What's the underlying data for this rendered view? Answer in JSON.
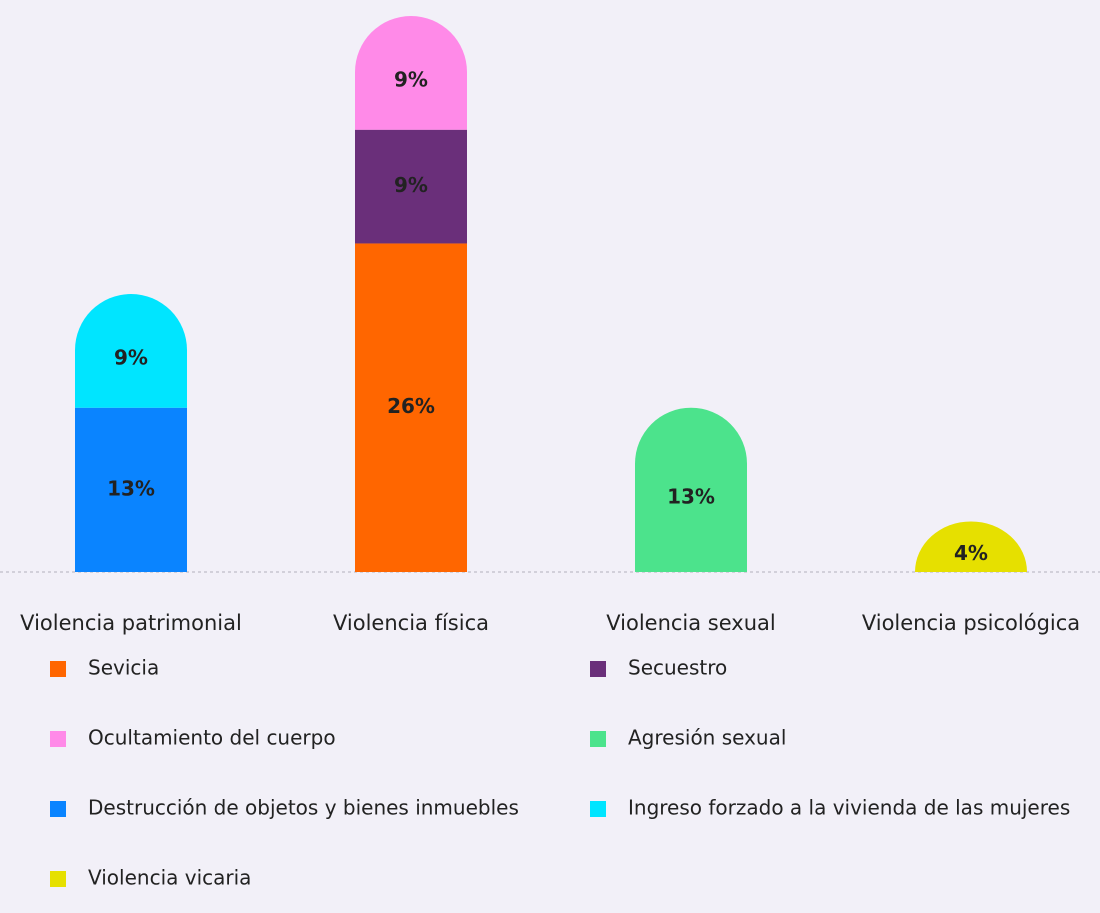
{
  "chart_data": {
    "type": "stacked_bar",
    "categories": [
      "Violencia patrimonial",
      "Violencia física",
      "Violencia sexual",
      "Violencia psicológica"
    ],
    "series": [
      {
        "name": "Sevicia",
        "color": "#ff6600",
        "values": [
          null,
          26,
          null,
          null
        ],
        "value_labels": [
          null,
          "26%",
          null,
          null
        ]
      },
      {
        "name": "Secuestro",
        "color": "#6a2f7a",
        "values": [
          null,
          9,
          null,
          null
        ],
        "value_labels": [
          null,
          "9%",
          null,
          null
        ]
      },
      {
        "name": "Ocultamiento del cuerpo",
        "color": "#ff8ae8",
        "values": [
          null,
          9,
          null,
          null
        ],
        "value_labels": [
          null,
          "9%",
          null,
          null
        ]
      },
      {
        "name": "Agresión sexual",
        "color": "#4ce38c",
        "values": [
          null,
          null,
          13,
          null
        ],
        "value_labels": [
          null,
          null,
          "13%",
          null
        ]
      },
      {
        "name": "Destrucción de objetos y bienes inmuebles",
        "color": "#0a84ff",
        "values": [
          13,
          null,
          null,
          null
        ],
        "value_labels": [
          "13%",
          null,
          null,
          null
        ]
      },
      {
        "name": "Ingreso forzado a la vivienda de las mujeres",
        "color": "#00e5ff",
        "values": [
          9,
          null,
          null,
          null
        ],
        "value_labels": [
          "9%",
          null,
          null,
          null
        ]
      },
      {
        "name": "Violencia vicaria",
        "color": "#e6e000",
        "values": [
          null,
          null,
          null,
          4
        ],
        "value_labels": [
          null,
          null,
          null,
          "4%"
        ]
      }
    ]
  }
}
